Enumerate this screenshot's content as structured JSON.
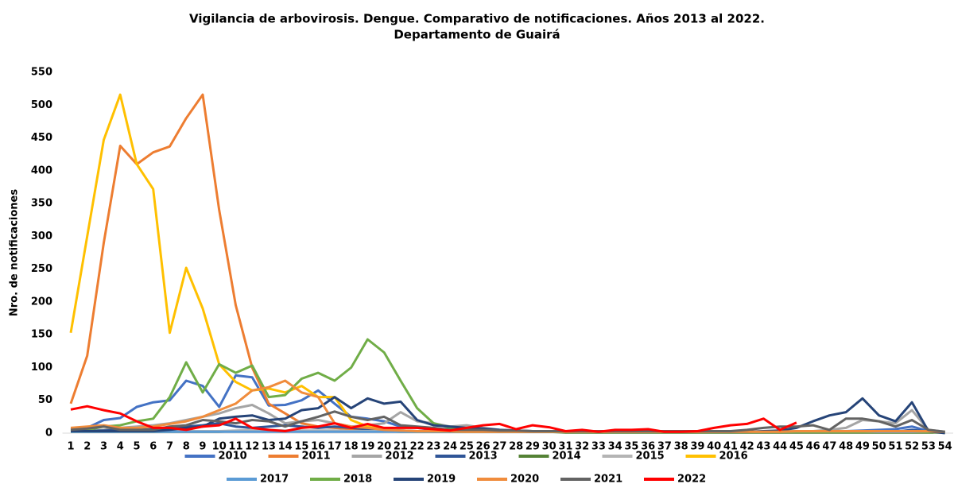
{
  "chart_data": {
    "type": "line",
    "title": "Vigilancia de arbovirosis. Dengue. Comparativo de notificaciones. Años 2013 al 2022.",
    "subtitle": "Departamento de Guairá",
    "y_label": "Nro. de notificaciones",
    "categories": [
      1,
      2,
      3,
      4,
      5,
      6,
      7,
      8,
      9,
      10,
      11,
      12,
      13,
      14,
      15,
      16,
      17,
      18,
      19,
      20,
      21,
      22,
      23,
      24,
      25,
      26,
      27,
      28,
      29,
      30,
      31,
      32,
      33,
      34,
      35,
      36,
      37,
      38,
      39,
      40,
      41,
      42,
      43,
      44,
      45,
      46,
      47,
      48,
      49,
      50,
      51,
      52,
      53,
      54
    ],
    "ylim": [
      0,
      550
    ],
    "yticks": [
      0,
      50,
      100,
      150,
      200,
      250,
      300,
      350,
      400,
      450,
      500,
      550
    ],
    "grid": false,
    "legend": "bottom",
    "series": [
      {
        "name": "2010",
        "color": "#4472c4",
        "values": [
          5,
          8,
          20,
          23,
          40,
          47,
          50,
          80,
          72,
          40,
          88,
          85,
          42,
          43,
          50,
          65,
          45,
          25,
          22,
          18,
          10,
          8,
          5,
          5,
          4,
          4,
          3,
          3,
          3,
          2,
          2,
          2,
          2,
          2,
          2,
          2,
          2,
          2,
          2,
          2,
          2,
          2,
          2,
          3,
          3,
          3,
          3,
          3,
          4,
          5,
          6,
          10,
          3,
          1
        ]
      },
      {
        "name": "2011",
        "color": "#ed7d31",
        "values": [
          45,
          118,
          290,
          438,
          410,
          428,
          437,
          480,
          516,
          340,
          195,
          100,
          45,
          30,
          15,
          10,
          8,
          6,
          5,
          4,
          3,
          3,
          2,
          2,
          2,
          2,
          2,
          2,
          2,
          2,
          2,
          2,
          2,
          2,
          2,
          2,
          2,
          2,
          2,
          2,
          2,
          2,
          2,
          2,
          2,
          2,
          2,
          2,
          2,
          2,
          2,
          2,
          2,
          1
        ]
      },
      {
        "name": "2012",
        "color": "#a5a5a5",
        "values": [
          2,
          3,
          5,
          8,
          10,
          12,
          15,
          20,
          25,
          30,
          38,
          43,
          30,
          15,
          18,
          20,
          15,
          10,
          12,
          15,
          32,
          18,
          15,
          10,
          12,
          8,
          5,
          4,
          3,
          3,
          3,
          3,
          2,
          2,
          2,
          2,
          2,
          2,
          2,
          2,
          2,
          2,
          2,
          3,
          3,
          3,
          5,
          8,
          20,
          18,
          15,
          35,
          5,
          2
        ]
      },
      {
        "name": "2013",
        "color": "#2f5597",
        "values": [
          3,
          3,
          4,
          5,
          5,
          6,
          8,
          10,
          12,
          15,
          10,
          8,
          10,
          12,
          10,
          8,
          10,
          8,
          6,
          5,
          4,
          3,
          3,
          3,
          3,
          2,
          2,
          2,
          2,
          2,
          2,
          2,
          2,
          2,
          2,
          2,
          2,
          2,
          2,
          2,
          2,
          2,
          2,
          2,
          2,
          2,
          2,
          2,
          2,
          2,
          2,
          5,
          2,
          1
        ]
      },
      {
        "name": "2014",
        "color": "#548235",
        "values": [
          2,
          2,
          2,
          2,
          2,
          2,
          2,
          2,
          2,
          2,
          3,
          3,
          3,
          3,
          3,
          3,
          3,
          3,
          3,
          3,
          2,
          2,
          2,
          2,
          2,
          2,
          2,
          2,
          2,
          2,
          1,
          1,
          1,
          1,
          1,
          1,
          1,
          1,
          1,
          1,
          1,
          1,
          1,
          1,
          1,
          1,
          1,
          1,
          1,
          1,
          1,
          1,
          1,
          1
        ]
      },
      {
        "name": "2015",
        "color": "#b4b4b4",
        "values": [
          3,
          3,
          3,
          3,
          3,
          3,
          3,
          3,
          3,
          3,
          4,
          5,
          5,
          4,
          4,
          4,
          4,
          3,
          3,
          3,
          3,
          3,
          3,
          3,
          3,
          3,
          3,
          3,
          3,
          3,
          2,
          2,
          2,
          2,
          2,
          2,
          2,
          2,
          2,
          2,
          2,
          2,
          2,
          2,
          2,
          2,
          2,
          2,
          2,
          2,
          2,
          2,
          2,
          1
        ]
      },
      {
        "name": "2016",
        "color": "#ffc000",
        "values": [
          153,
          300,
          447,
          516,
          410,
          372,
          153,
          252,
          190,
          105,
          78,
          65,
          68,
          62,
          72,
          55,
          55,
          20,
          10,
          5,
          3,
          2,
          2,
          2,
          2,
          2,
          2,
          2,
          2,
          2,
          2,
          2,
          2,
          2,
          2,
          2,
          2,
          2,
          2,
          2,
          2,
          2,
          2,
          2,
          2,
          2,
          2,
          2,
          2,
          2,
          2,
          2,
          2,
          1
        ]
      },
      {
        "name": "2017",
        "color": "#5b9bd5",
        "values": [
          2,
          2,
          2,
          2,
          2,
          2,
          2,
          2,
          2,
          2,
          2,
          2,
          2,
          2,
          2,
          2,
          2,
          2,
          2,
          2,
          2,
          2,
          2,
          2,
          2,
          2,
          2,
          2,
          2,
          2,
          2,
          2,
          2,
          2,
          2,
          2,
          2,
          2,
          2,
          2,
          2,
          2,
          2,
          2,
          2,
          2,
          2,
          2,
          2,
          2,
          2,
          2,
          2,
          1
        ]
      },
      {
        "name": "2018",
        "color": "#70ad47",
        "values": [
          3,
          5,
          10,
          12,
          18,
          22,
          55,
          108,
          62,
          105,
          92,
          103,
          55,
          58,
          83,
          92,
          80,
          100,
          143,
          123,
          80,
          38,
          15,
          8,
          5,
          5,
          4,
          3,
          3,
          2,
          2,
          2,
          2,
          2,
          2,
          2,
          2,
          2,
          2,
          2,
          2,
          2,
          2,
          2,
          2,
          2,
          2,
          2,
          2,
          3,
          3,
          3,
          2,
          1
        ]
      },
      {
        "name": "2019",
        "color": "#264478",
        "values": [
          3,
          3,
          3,
          3,
          3,
          3,
          5,
          8,
          10,
          22,
          25,
          27,
          20,
          22,
          35,
          38,
          55,
          38,
          53,
          45,
          48,
          20,
          12,
          10,
          8,
          7,
          5,
          4,
          3,
          3,
          2,
          2,
          2,
          2,
          2,
          2,
          2,
          2,
          2,
          2,
          2,
          2,
          3,
          4,
          8,
          18,
          27,
          32,
          53,
          27,
          18,
          47,
          3,
          0
        ]
      },
      {
        "name": "2020",
        "color": "#f08c3c",
        "values": [
          8,
          10,
          12,
          8,
          8,
          10,
          14,
          18,
          25,
          35,
          45,
          65,
          70,
          80,
          62,
          55,
          15,
          10,
          8,
          5,
          4,
          3,
          3,
          3,
          2,
          2,
          2,
          2,
          2,
          2,
          2,
          2,
          2,
          2,
          2,
          2,
          2,
          2,
          2,
          2,
          2,
          2,
          2,
          2,
          3,
          3,
          3,
          3,
          3,
          3,
          3,
          3,
          3,
          2
        ]
      },
      {
        "name": "2021",
        "color": "#636363",
        "values": [
          5,
          7,
          10,
          5,
          5,
          5,
          10,
          12,
          20,
          18,
          15,
          20,
          18,
          10,
          18,
          25,
          33,
          25,
          20,
          25,
          12,
          10,
          8,
          5,
          5,
          5,
          4,
          4,
          3,
          3,
          3,
          3,
          3,
          3,
          3,
          3,
          3,
          3,
          3,
          3,
          3,
          5,
          8,
          10,
          10,
          12,
          5,
          22,
          22,
          18,
          10,
          20,
          5,
          2
        ]
      },
      {
        "name": "2022",
        "color": "#ff0000",
        "values": [
          36,
          41,
          35,
          30,
          18,
          8,
          8,
          5,
          10,
          12,
          22,
          8,
          5,
          3,
          8,
          10,
          15,
          8,
          14,
          8,
          8,
          8,
          6,
          4,
          8,
          12,
          14,
          6,
          12,
          9,
          3,
          5,
          2,
          5,
          5,
          6,
          2,
          2,
          3,
          8,
          12,
          14,
          22,
          5,
          16,
          null,
          null,
          null,
          null,
          null,
          null,
          null,
          null,
          null
        ]
      }
    ]
  }
}
